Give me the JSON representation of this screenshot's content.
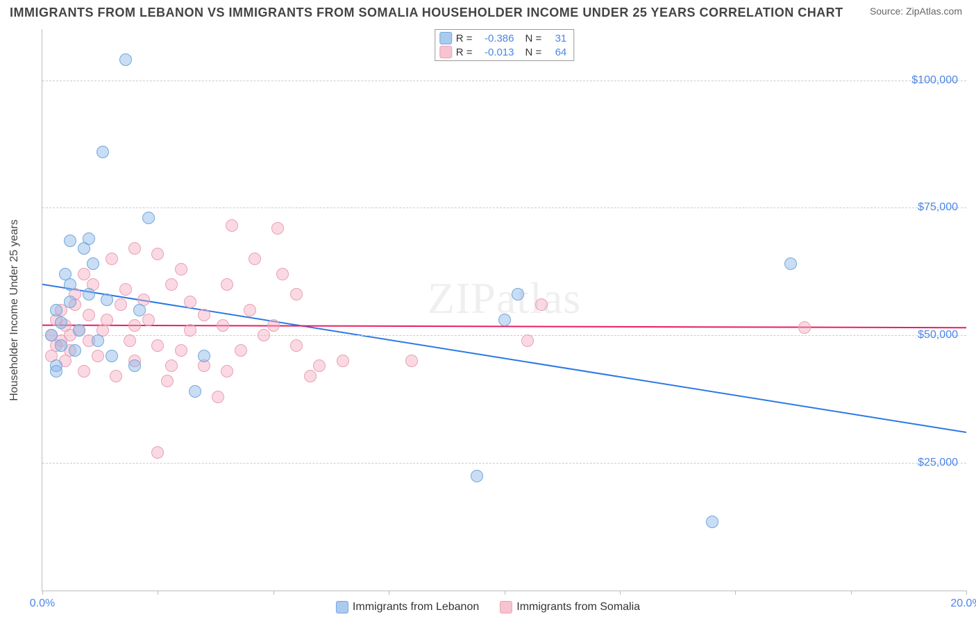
{
  "header": {
    "title": "IMMIGRANTS FROM LEBANON VS IMMIGRANTS FROM SOMALIA HOUSEHOLDER INCOME UNDER 25 YEARS CORRELATION CHART",
    "source": "Source: ZipAtlas.com"
  },
  "watermark": {
    "zip": "ZIP",
    "atlas": "atlas"
  },
  "chart": {
    "type": "scatter",
    "ylabel": "Householder Income Under 25 years",
    "background_color": "#ffffff",
    "grid_color": "#cccccc",
    "axis_color": "#bbbbbb",
    "tick_label_color": "#4a86e8",
    "xlim": [
      0,
      20
    ],
    "ylim": [
      0,
      110000
    ],
    "xticks": [
      {
        "pos": 0,
        "label": "0.0%"
      },
      {
        "pos": 20,
        "label": "20.0%"
      }
    ],
    "xtick_marks": [
      0,
      2.5,
      5,
      7.5,
      10,
      12.5,
      15,
      17.5,
      20
    ],
    "yticks": [
      {
        "pos": 25000,
        "label": "$25,000"
      },
      {
        "pos": 50000,
        "label": "$50,000"
      },
      {
        "pos": 75000,
        "label": "$75,000"
      },
      {
        "pos": 100000,
        "label": "$100,000"
      }
    ],
    "marker_radius": 9,
    "series": [
      {
        "name": "Immigrants from Lebanon",
        "color_fill": "rgba(135,180,230,0.45)",
        "color_stroke": "#6fa8dc",
        "class": "blue",
        "R": "-0.386",
        "N": "31",
        "trend": {
          "x1": 0,
          "y1": 60000,
          "x2": 20,
          "y2": 31000,
          "stroke": "#2b78e4",
          "width": 2
        },
        "points": [
          [
            1.8,
            104000
          ],
          [
            1.3,
            86000
          ],
          [
            2.3,
            73000
          ],
          [
            1.0,
            69000
          ],
          [
            0.6,
            68500
          ],
          [
            0.9,
            67000
          ],
          [
            1.1,
            64000
          ],
          [
            0.5,
            62000
          ],
          [
            1.0,
            58000
          ],
          [
            0.6,
            56500
          ],
          [
            1.4,
            57000
          ],
          [
            2.1,
            55000
          ],
          [
            0.3,
            55000
          ],
          [
            0.4,
            52500
          ],
          [
            0.8,
            51000
          ],
          [
            0.2,
            50000
          ],
          [
            1.2,
            49000
          ],
          [
            0.4,
            48000
          ],
          [
            0.7,
            47000
          ],
          [
            1.5,
            46000
          ],
          [
            2.0,
            44000
          ],
          [
            0.3,
            44000
          ],
          [
            3.5,
            46000
          ],
          [
            3.3,
            39000
          ],
          [
            0.3,
            43000
          ],
          [
            10.3,
            58000
          ],
          [
            10.0,
            53000
          ],
          [
            16.2,
            64000
          ],
          [
            9.4,
            22500
          ],
          [
            14.5,
            13500
          ],
          [
            0.6,
            60000
          ]
        ]
      },
      {
        "name": "Immigrants from Somalia",
        "color_fill": "rgba(244,170,190,0.45)",
        "color_stroke": "#e8a0b5",
        "class": "pink",
        "R": "-0.013",
        "N": "64",
        "trend": {
          "x1": 0,
          "y1": 52000,
          "x2": 20,
          "y2": 51500,
          "stroke": "#e91e63",
          "width": 2
        },
        "points": [
          [
            4.1,
            71500
          ],
          [
            5.1,
            71000
          ],
          [
            2.0,
            67000
          ],
          [
            2.5,
            66000
          ],
          [
            1.5,
            65000
          ],
          [
            3.0,
            63000
          ],
          [
            2.8,
            60000
          ],
          [
            5.2,
            62000
          ],
          [
            4.0,
            60000
          ],
          [
            1.8,
            59000
          ],
          [
            2.2,
            57000
          ],
          [
            3.2,
            56500
          ],
          [
            0.7,
            56000
          ],
          [
            1.0,
            54000
          ],
          [
            1.4,
            53000
          ],
          [
            0.3,
            53000
          ],
          [
            0.5,
            52000
          ],
          [
            0.8,
            51000
          ],
          [
            2.0,
            52000
          ],
          [
            3.5,
            54000
          ],
          [
            4.5,
            55000
          ],
          [
            5.0,
            52000
          ],
          [
            4.8,
            50000
          ],
          [
            5.5,
            48000
          ],
          [
            3.0,
            47000
          ],
          [
            2.5,
            48000
          ],
          [
            1.0,
            49000
          ],
          [
            0.4,
            49000
          ],
          [
            0.6,
            47000
          ],
          [
            0.2,
            50000
          ],
          [
            0.3,
            48000
          ],
          [
            0.5,
            45000
          ],
          [
            1.2,
            46000
          ],
          [
            2.0,
            45000
          ],
          [
            2.8,
            44000
          ],
          [
            3.5,
            44000
          ],
          [
            4.0,
            43000
          ],
          [
            3.8,
            38000
          ],
          [
            2.5,
            27000
          ],
          [
            6.0,
            44000
          ],
          [
            6.5,
            45000
          ],
          [
            5.8,
            42000
          ],
          [
            8.0,
            45000
          ],
          [
            10.5,
            49000
          ],
          [
            10.8,
            56000
          ],
          [
            16.5,
            51500
          ],
          [
            0.9,
            43000
          ],
          [
            1.6,
            42000
          ],
          [
            0.4,
            55000
          ],
          [
            0.7,
            58000
          ],
          [
            1.1,
            60000
          ],
          [
            1.3,
            51000
          ],
          [
            0.2,
            46000
          ],
          [
            0.6,
            50000
          ],
          [
            3.2,
            51000
          ],
          [
            4.3,
            47000
          ],
          [
            2.3,
            53000
          ],
          [
            1.7,
            56000
          ],
          [
            0.9,
            62000
          ],
          [
            1.9,
            49000
          ],
          [
            5.5,
            58000
          ],
          [
            4.6,
            65000
          ],
          [
            3.9,
            52000
          ],
          [
            2.7,
            41000
          ]
        ]
      }
    ],
    "legend_box": {
      "rows": [
        {
          "class": "blue",
          "R_label": "R =",
          "R_val": "-0.386",
          "N_label": "N =",
          "N_val": "31"
        },
        {
          "class": "pink",
          "R_label": "R =",
          "R_val": "-0.013",
          "N_label": "N =",
          "N_val": "64"
        }
      ]
    },
    "bottom_legend": [
      {
        "class": "blue",
        "label": "Immigrants from Lebanon"
      },
      {
        "class": "pink",
        "label": "Immigrants from Somalia"
      }
    ]
  }
}
